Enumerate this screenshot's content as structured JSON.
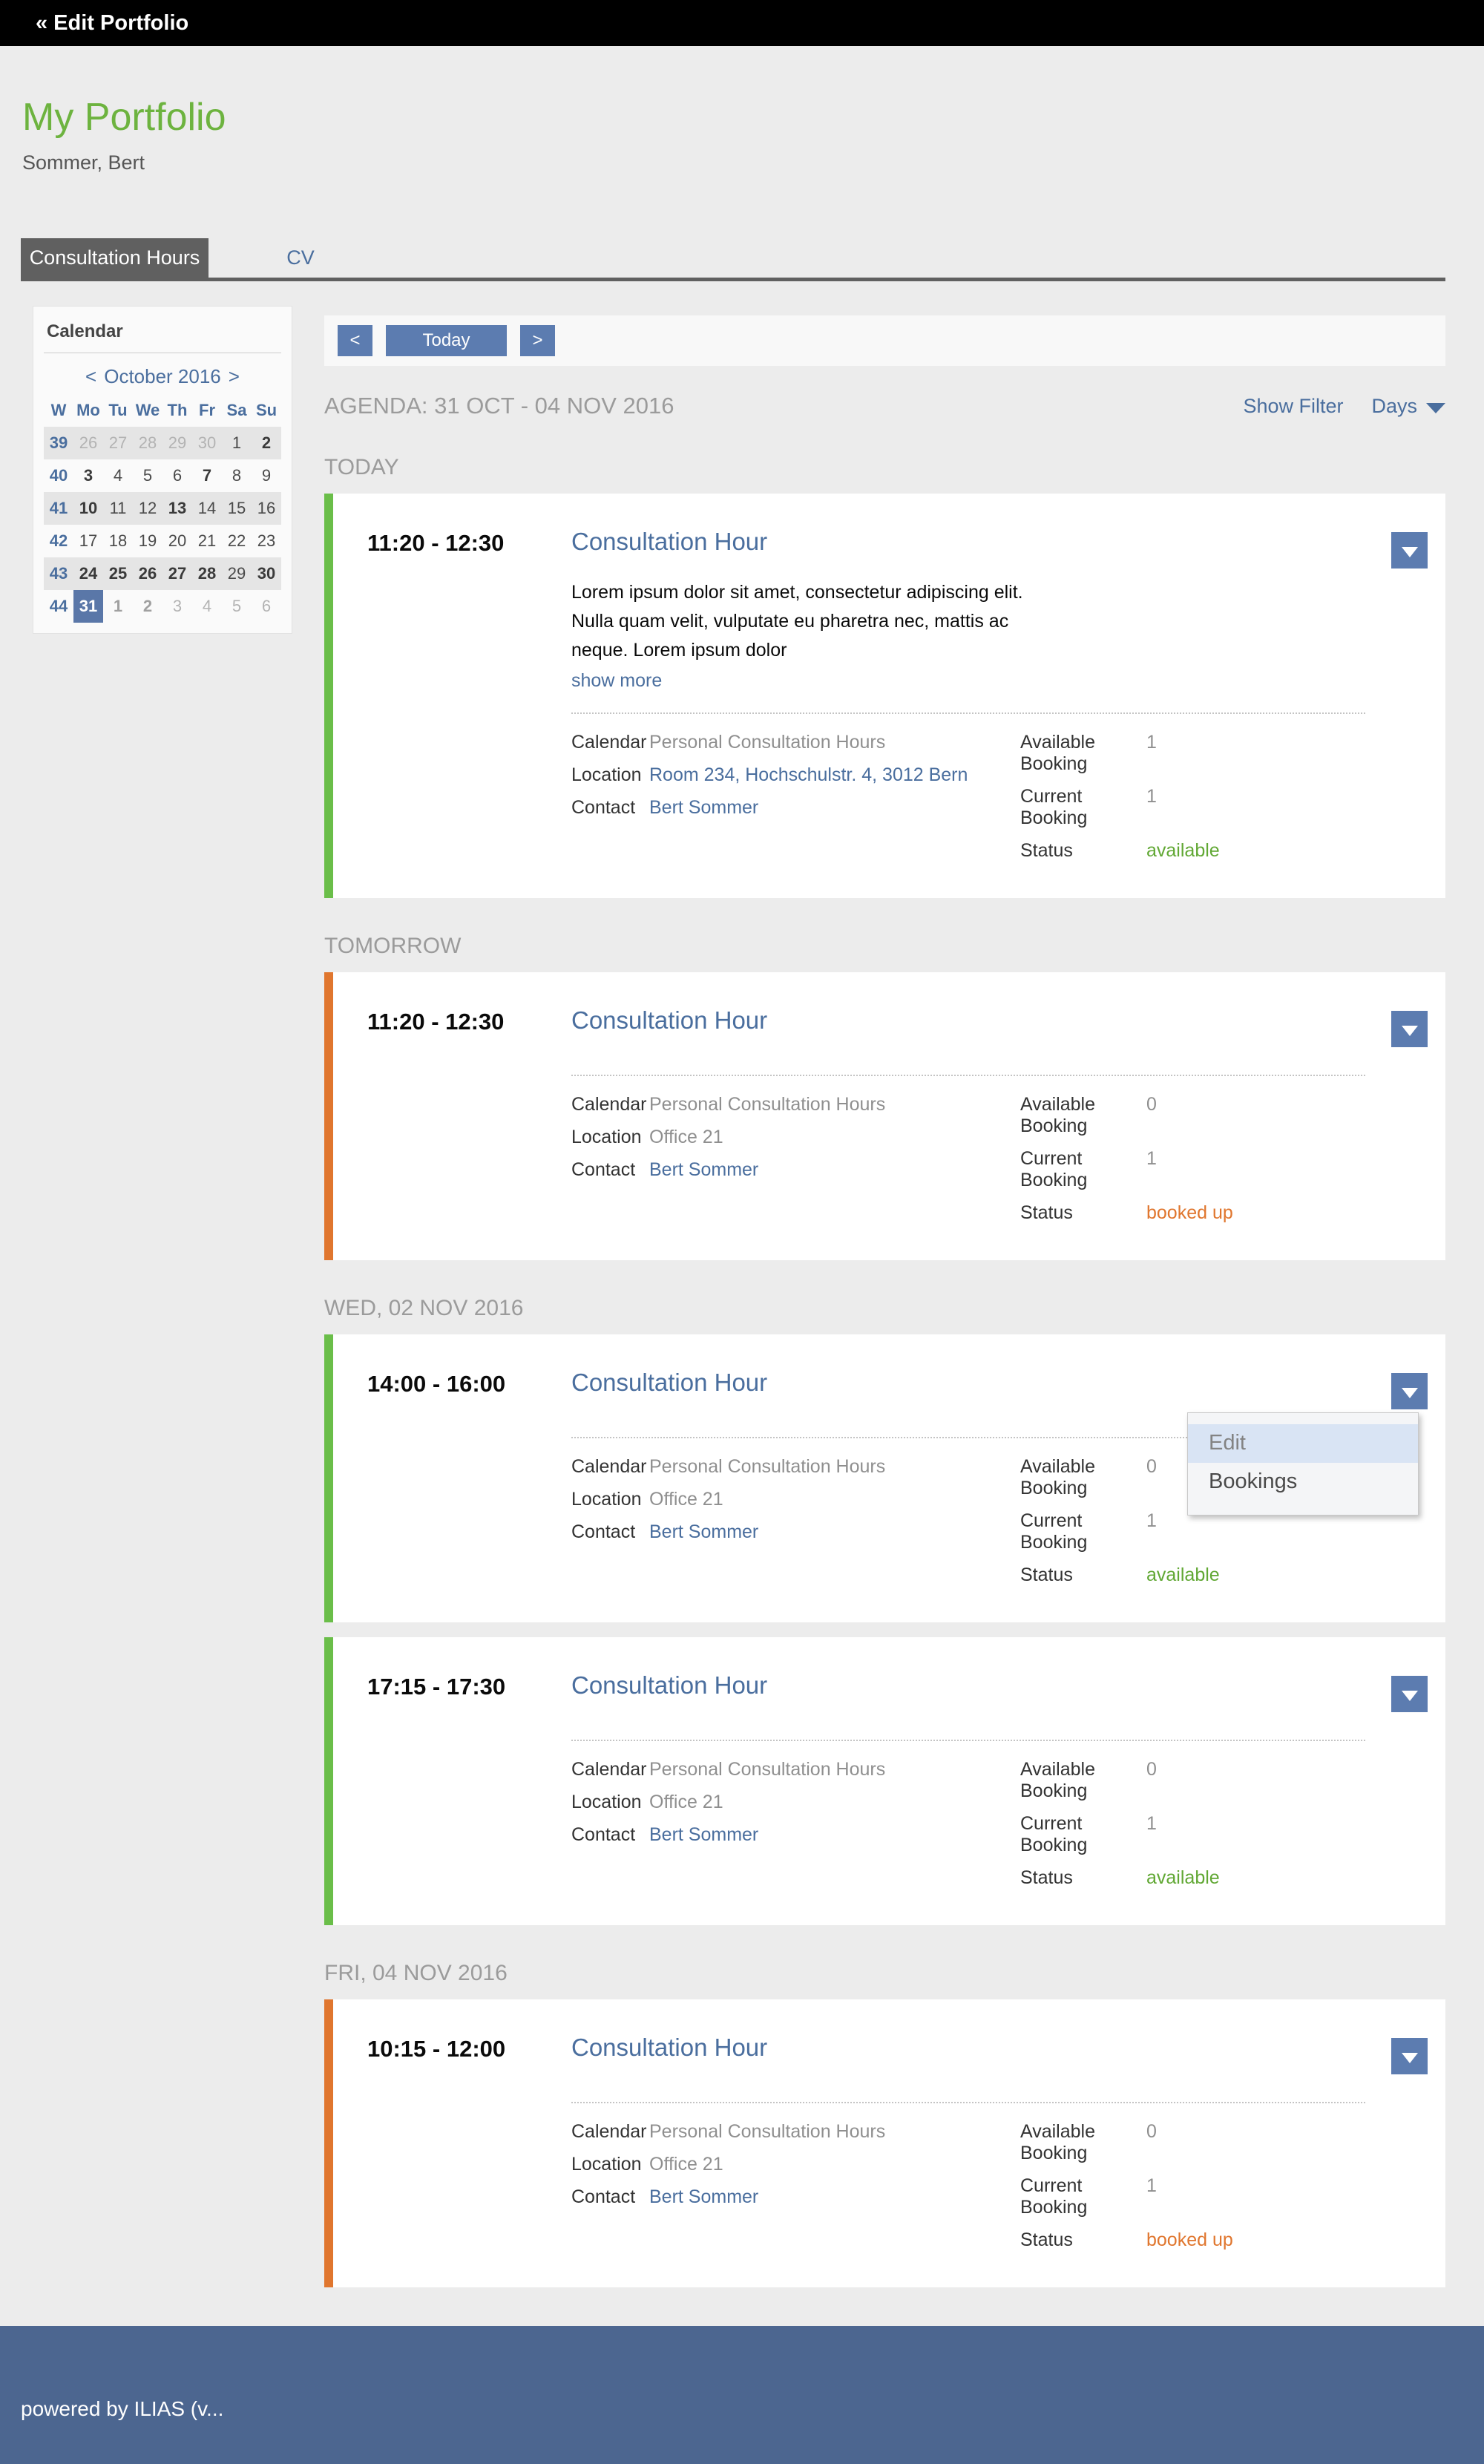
{
  "topbar": {
    "back_label": "« Edit Portfolio"
  },
  "header": {
    "title": "My Portfolio",
    "subtitle": "Sommer, Bert"
  },
  "tabs": [
    {
      "label": "Consultation Hours",
      "active": true
    },
    {
      "label": "CV",
      "active": false
    }
  ],
  "calendar": {
    "panel_title": "Calendar",
    "prev": "<",
    "next": ">",
    "month_label": "October 2016",
    "weekday_headers": [
      "W",
      "Mo",
      "Tu",
      "We",
      "Th",
      "Fr",
      "Sa",
      "Su"
    ],
    "rows": [
      {
        "week": "39",
        "shaded": true,
        "days": [
          {
            "d": "26",
            "s": "muted"
          },
          {
            "d": "27",
            "s": "muted"
          },
          {
            "d": "28",
            "s": "muted"
          },
          {
            "d": "29",
            "s": "muted"
          },
          {
            "d": "30",
            "s": "muted"
          },
          {
            "d": "1",
            "s": ""
          },
          {
            "d": "2",
            "s": "bold"
          }
        ]
      },
      {
        "week": "40",
        "shaded": false,
        "days": [
          {
            "d": "3",
            "s": "bold"
          },
          {
            "d": "4",
            "s": ""
          },
          {
            "d": "5",
            "s": ""
          },
          {
            "d": "6",
            "s": ""
          },
          {
            "d": "7",
            "s": "bold"
          },
          {
            "d": "8",
            "s": ""
          },
          {
            "d": "9",
            "s": ""
          }
        ]
      },
      {
        "week": "41",
        "shaded": true,
        "days": [
          {
            "d": "10",
            "s": "bold"
          },
          {
            "d": "11",
            "s": ""
          },
          {
            "d": "12",
            "s": ""
          },
          {
            "d": "13",
            "s": "bold"
          },
          {
            "d": "14",
            "s": ""
          },
          {
            "d": "15",
            "s": ""
          },
          {
            "d": "16",
            "s": ""
          }
        ]
      },
      {
        "week": "42",
        "shaded": false,
        "days": [
          {
            "d": "17",
            "s": ""
          },
          {
            "d": "18",
            "s": ""
          },
          {
            "d": "19",
            "s": ""
          },
          {
            "d": "20",
            "s": ""
          },
          {
            "d": "21",
            "s": ""
          },
          {
            "d": "22",
            "s": ""
          },
          {
            "d": "23",
            "s": ""
          }
        ]
      },
      {
        "week": "43",
        "shaded": true,
        "days": [
          {
            "d": "24",
            "s": "bold"
          },
          {
            "d": "25",
            "s": "bold"
          },
          {
            "d": "26",
            "s": "bold"
          },
          {
            "d": "27",
            "s": "bold"
          },
          {
            "d": "28",
            "s": "bold"
          },
          {
            "d": "29",
            "s": ""
          },
          {
            "d": "30",
            "s": "bold"
          }
        ]
      },
      {
        "week": "44",
        "shaded": false,
        "days": [
          {
            "d": "31",
            "s": "selected"
          },
          {
            "d": "1",
            "s": "muted-bold"
          },
          {
            "d": "2",
            "s": "muted-bold"
          },
          {
            "d": "3",
            "s": "muted"
          },
          {
            "d": "4",
            "s": "muted"
          },
          {
            "d": "5",
            "s": "muted"
          },
          {
            "d": "6",
            "s": "muted"
          }
        ]
      }
    ]
  },
  "toolbar": {
    "prev_label": "<",
    "today_label": "Today",
    "next_label": ">"
  },
  "agenda": {
    "title": "AGENDA: 31 OCT - 04 NOV 2016",
    "show_filter_label": "Show Filter",
    "days_label": "Days",
    "sections": [
      {
        "label": "TODAY",
        "events": [
          {
            "time": "11:20 - 12:30",
            "title": "Consultation Hour",
            "description": "Lorem ipsum dolor sit amet, consectetur adipiscing elit. Nulla quam velit, vulputate eu pharetra nec, mattis ac neque. Lorem ipsum dolor",
            "show_more": "show more",
            "accent": "green",
            "calendar": "Personal Consultation Hours",
            "location": "Room 234, Hochschulstr. 4, 3012 Bern",
            "location_is_link": true,
            "contact": "Bert Sommer",
            "available_booking": "1",
            "current_booking": "1",
            "status": "available",
            "status_color": "green",
            "menu_open": false
          }
        ]
      },
      {
        "label": "TOMORROW",
        "events": [
          {
            "time": "11:20 - 12:30",
            "title": "Consultation Hour",
            "accent": "orange",
            "calendar": "Personal Consultation Hours",
            "location": "Office 21",
            "location_is_link": false,
            "contact": "Bert Sommer",
            "available_booking": "0",
            "current_booking": "1",
            "status": "booked up",
            "status_color": "orange",
            "menu_open": false
          }
        ]
      },
      {
        "label": "WED, 02 NOV 2016",
        "events": [
          {
            "time": "14:00 - 16:00",
            "title": "Consultation Hour",
            "accent": "green",
            "calendar": "Personal Consultation Hours",
            "location": "Office 21",
            "location_is_link": false,
            "contact": "Bert Sommer",
            "available_booking": "0",
            "current_booking": "1",
            "status": "available",
            "status_color": "green",
            "menu_open": true
          },
          {
            "time": "17:15 - 17:30",
            "title": "Consultation Hour",
            "accent": "green",
            "calendar": "Personal Consultation Hours",
            "location": "Office 21",
            "location_is_link": false,
            "contact": "Bert Sommer",
            "available_booking": "0",
            "current_booking": "1",
            "status": "available",
            "status_color": "green",
            "menu_open": false
          }
        ]
      },
      {
        "label": "FRI, 04 NOV 2016",
        "events": [
          {
            "time": "10:15 - 12:00",
            "title": "Consultation Hour",
            "accent": "orange",
            "calendar": "Personal Consultation Hours",
            "location": "Office 21",
            "location_is_link": false,
            "contact": "Bert Sommer",
            "available_booking": "0",
            "current_booking": "1",
            "status": "booked up",
            "status_color": "orange",
            "menu_open": false
          }
        ]
      }
    ]
  },
  "event_labels": {
    "calendar": "Calendar",
    "location": "Location",
    "contact": "Contact",
    "available": "Available Booking",
    "current": "Current Booking",
    "status": "Status"
  },
  "dropdown_menu": {
    "items": [
      {
        "label": "Edit",
        "highlight": true
      },
      {
        "label": "Bookings",
        "highlight": false
      }
    ]
  },
  "footer": {
    "text": "powered by ILIAS (v..."
  },
  "colors": {
    "title_green": "#6db33f",
    "accent_green": "#6abe49",
    "accent_orange": "#e0762e",
    "status_green": "#61a834",
    "status_orange": "#e0762e",
    "link_blue": "#4a6e9e",
    "button_blue": "#5c7cb0",
    "selected_day_blue": "#5a77a8",
    "footer_blue": "#4c6690"
  }
}
